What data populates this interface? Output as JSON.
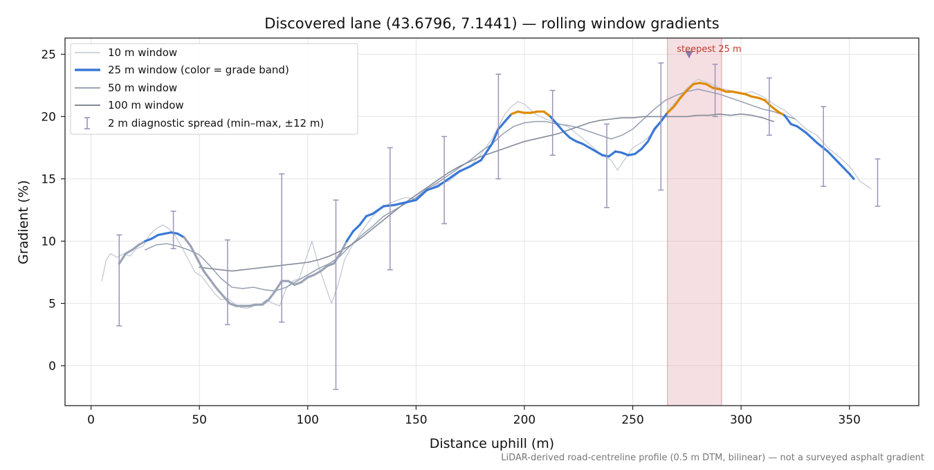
{
  "chart_data": {
    "type": "line",
    "title": "Discovered lane (43.6796, 7.1441) — rolling window gradients",
    "xlabel": "Distance uphill (m)",
    "ylabel": "Gradient (%)",
    "xlim": [
      -12,
      382
    ],
    "ylim": [
      -3.2,
      26.3
    ],
    "xticks": [
      0,
      50,
      100,
      150,
      200,
      250,
      300,
      350
    ],
    "yticks": [
      0,
      5,
      10,
      15,
      20,
      25
    ],
    "grid": true,
    "legend_position": "top-left",
    "footnote": "LiDAR-derived road-centreline profile (0.5 m DTM, bilinear) — not a surveyed asphalt gradient",
    "highlight": {
      "x_start": 266,
      "x_end": 291,
      "marker_x": 276,
      "marker_y": 25,
      "label": "steepest 25 m",
      "color": "#e9b3ba"
    },
    "series": [
      {
        "name": "10 m window",
        "color": "#c4c9d4",
        "style": "thin",
        "x": [
          5,
          7,
          9,
          12,
          15,
          18,
          21,
          24,
          27,
          30,
          33,
          36,
          39,
          42,
          45,
          48,
          51,
          54,
          57,
          60,
          63,
          66,
          69,
          72,
          75,
          78,
          81,
          84,
          87,
          90,
          93,
          96,
          99,
          102,
          105,
          108,
          111,
          114,
          117,
          120,
          125,
          130,
          135,
          140,
          145,
          150,
          155,
          160,
          165,
          170,
          175,
          180,
          185,
          188,
          191,
          194,
          197,
          200,
          205,
          210,
          215,
          220,
          225,
          230,
          235,
          240,
          243,
          246,
          250,
          255,
          260,
          265,
          270,
          275,
          280,
          285,
          290,
          295,
          300,
          305,
          310,
          315,
          320,
          325,
          330,
          335,
          340,
          345,
          350,
          355,
          360
        ],
        "y": [
          6.8,
          8.5,
          9.0,
          8.7,
          9.0,
          8.8,
          9.4,
          9.6,
          10.5,
          11.0,
          11.3,
          11.0,
          10.4,
          9.5,
          8.5,
          7.5,
          7.2,
          6.5,
          5.8,
          5.3,
          5.4,
          5.0,
          4.7,
          4.6,
          4.8,
          4.9,
          5.3,
          5.0,
          4.8,
          6.2,
          6.8,
          7.0,
          8.5,
          10.0,
          8.0,
          6.5,
          5.0,
          6.5,
          8.5,
          9.5,
          10.8,
          12.0,
          12.8,
          13.2,
          13.5,
          13.4,
          14.0,
          14.6,
          14.8,
          15.5,
          16.0,
          17.0,
          18.2,
          19.2,
          20.2,
          20.8,
          21.2,
          21.0,
          20.2,
          19.8,
          19.5,
          19.2,
          18.5,
          17.8,
          17.0,
          16.5,
          15.7,
          16.5,
          17.5,
          18.0,
          18.8,
          20.2,
          21.2,
          22.3,
          23.0,
          22.7,
          22.3,
          22.1,
          21.8,
          22.0,
          21.6,
          21.0,
          20.5,
          19.8,
          19.0,
          18.5,
          17.5,
          16.8,
          16.0,
          14.8,
          14.2
        ]
      },
      {
        "name": "25 m window (color = grade band)",
        "color": "#3a78d6",
        "style": "thick",
        "band_colors": {
          "low": "#9aa3b5",
          "mid": "#3a78d6",
          "high": "#e08a00"
        },
        "x": [
          13,
          16,
          19,
          22,
          25,
          28,
          31,
          34,
          37,
          40,
          43,
          46,
          49,
          52,
          55,
          58,
          61,
          64,
          67,
          70,
          73,
          76,
          79,
          82,
          85,
          88,
          91,
          94,
          97,
          100,
          103,
          106,
          109,
          112,
          115,
          118,
          121,
          124,
          127,
          130,
          135,
          140,
          145,
          150,
          155,
          160,
          165,
          170,
          175,
          180,
          185,
          188,
          191,
          194,
          197,
          200,
          203,
          206,
          209,
          212,
          215,
          218,
          221,
          224,
          227,
          230,
          233,
          236,
          239,
          242,
          245,
          248,
          251,
          254,
          257,
          260,
          263,
          266,
          269,
          272,
          275,
          278,
          281,
          284,
          287,
          290,
          293,
          296,
          299,
          302,
          305,
          308,
          311,
          314,
          317,
          320,
          323,
          326,
          330,
          335,
          340,
          345,
          350,
          352
        ],
        "y": [
          8.2,
          9.0,
          9.3,
          9.7,
          10.0,
          10.2,
          10.5,
          10.6,
          10.7,
          10.6,
          10.3,
          9.6,
          8.6,
          7.6,
          6.9,
          6.2,
          5.6,
          5.0,
          4.8,
          4.8,
          4.8,
          4.9,
          4.9,
          5.3,
          6.0,
          6.8,
          6.8,
          6.5,
          6.7,
          7.1,
          7.3,
          7.6,
          8.0,
          8.2,
          9.0,
          10.0,
          10.8,
          11.3,
          12.0,
          12.2,
          12.8,
          12.9,
          13.1,
          13.3,
          14.1,
          14.4,
          15.0,
          15.6,
          16.0,
          16.5,
          17.8,
          19.0,
          19.6,
          20.2,
          20.4,
          20.3,
          20.3,
          20.4,
          20.4,
          20.0,
          19.4,
          18.8,
          18.3,
          18.0,
          17.8,
          17.5,
          17.2,
          16.9,
          16.8,
          17.2,
          17.1,
          16.9,
          17.0,
          17.4,
          18.0,
          19.0,
          19.6,
          20.3,
          20.8,
          21.5,
          22.1,
          22.6,
          22.7,
          22.6,
          22.3,
          22.2,
          22.0,
          22.0,
          21.9,
          21.8,
          21.6,
          21.5,
          21.3,
          20.8,
          20.4,
          20.1,
          19.4,
          19.2,
          18.7,
          17.9,
          17.2,
          16.3,
          15.4,
          15.0
        ]
      },
      {
        "name": "50 m window",
        "color": "#9aa3b5",
        "style": "medium",
        "x": [
          25,
          30,
          35,
          40,
          45,
          50,
          55,
          60,
          65,
          70,
          75,
          80,
          85,
          90,
          95,
          100,
          105,
          110,
          115,
          120,
          125,
          130,
          135,
          140,
          145,
          150,
          155,
          160,
          165,
          170,
          175,
          180,
          185,
          190,
          195,
          200,
          205,
          210,
          215,
          220,
          225,
          230,
          235,
          240,
          245,
          250,
          255,
          260,
          265,
          270,
          275,
          280,
          285,
          290,
          295,
          300,
          305,
          310,
          315,
          320,
          325
        ],
        "y": [
          9.3,
          9.7,
          9.8,
          9.6,
          9.3,
          8.9,
          8.0,
          7.0,
          6.3,
          6.2,
          6.3,
          6.1,
          6.0,
          6.3,
          6.8,
          7.3,
          7.8,
          8.2,
          8.8,
          9.7,
          10.5,
          11.2,
          12.0,
          12.5,
          13.0,
          13.5,
          14.2,
          14.7,
          15.3,
          15.9,
          16.5,
          17.2,
          17.8,
          18.6,
          19.2,
          19.5,
          19.6,
          19.6,
          19.4,
          19.3,
          19.1,
          18.8,
          18.5,
          18.2,
          18.5,
          19.0,
          19.8,
          20.6,
          21.3,
          21.7,
          22.0,
          22.2,
          22.0,
          21.8,
          21.5,
          21.2,
          20.9,
          20.6,
          20.4,
          20.1,
          19.8
        ]
      },
      {
        "name": "100 m window",
        "color": "#828a98",
        "style": "medium",
        "x": [
          50,
          55,
          60,
          65,
          70,
          75,
          80,
          85,
          90,
          95,
          100,
          105,
          110,
          115,
          120,
          125,
          130,
          135,
          140,
          145,
          150,
          155,
          160,
          165,
          170,
          175,
          180,
          185,
          190,
          195,
          200,
          205,
          210,
          215,
          220,
          225,
          230,
          235,
          240,
          245,
          250,
          255,
          260,
          265,
          270,
          275,
          280,
          285,
          290,
          295,
          300,
          305,
          310,
          315
        ],
        "y": [
          7.9,
          7.8,
          7.7,
          7.6,
          7.7,
          7.8,
          7.9,
          8.0,
          8.1,
          8.2,
          8.3,
          8.5,
          8.8,
          9.2,
          9.7,
          10.3,
          11.0,
          11.7,
          12.4,
          13.1,
          13.7,
          14.3,
          14.9,
          15.5,
          16.0,
          16.4,
          16.8,
          17.1,
          17.4,
          17.7,
          18.0,
          18.2,
          18.4,
          18.6,
          18.9,
          19.2,
          19.5,
          19.7,
          19.8,
          19.9,
          19.9,
          20.0,
          20.0,
          20.0,
          20.0,
          20.0,
          20.1,
          20.1,
          20.2,
          20.1,
          20.2,
          20.1,
          19.9,
          19.6
        ]
      },
      {
        "name": "2 m diagnostic spread (min–max, ±12 m)",
        "color": "#9b93b8",
        "style": "errorbar",
        "x": [
          13,
          38,
          63,
          88,
          113,
          138,
          163,
          188,
          213,
          238,
          263,
          288,
          313,
          338,
          363
        ],
        "ymin": [
          3.2,
          9.4,
          3.3,
          3.5,
          -1.9,
          7.7,
          11.4,
          15.0,
          16.9,
          12.7,
          14.1,
          20.0,
          18.5,
          14.4,
          12.8
        ],
        "ymax": [
          10.5,
          12.4,
          10.1,
          15.4,
          13.3,
          17.5,
          18.4,
          23.4,
          22.1,
          19.4,
          24.3,
          24.2,
          23.1,
          20.8,
          16.6
        ]
      }
    ]
  }
}
